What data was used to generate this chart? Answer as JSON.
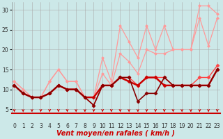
{
  "xlabel": "Vent moyen/en rafales ( km/h )",
  "bg_color": "#cce8e8",
  "grid_color": "#aaaaaa",
  "x_values": [
    0,
    1,
    2,
    3,
    4,
    5,
    6,
    7,
    8,
    9,
    10,
    11,
    12,
    13,
    14,
    15,
    16,
    17,
    18,
    19,
    20,
    21,
    22,
    23
  ],
  "series": [
    {
      "name": "top_light",
      "color": "#ff9999",
      "linewidth": 0.9,
      "markersize": 2.0,
      "marker": "D",
      "y": [
        12,
        10,
        8,
        8,
        12,
        15,
        12,
        12,
        8,
        8,
        18,
        12,
        26,
        22,
        18,
        26,
        20,
        26,
        20,
        20,
        20,
        31,
        31,
        29
      ]
    },
    {
      "name": "mid_light",
      "color": "#ff9999",
      "linewidth": 0.9,
      "markersize": 2.0,
      "marker": "D",
      "y": [
        12,
        10,
        8,
        8,
        12,
        15,
        12,
        12,
        8,
        8,
        14,
        11,
        19,
        17,
        14,
        20,
        19,
        19,
        20,
        20,
        20,
        28,
        21,
        28
      ]
    },
    {
      "name": "med_red",
      "color": "#ff4444",
      "linewidth": 1.0,
      "markersize": 2.5,
      "marker": "D",
      "y": [
        11,
        9,
        8,
        8,
        9,
        11,
        10,
        10,
        8,
        6,
        11,
        11,
        13,
        13,
        11,
        13,
        13,
        13,
        11,
        11,
        11,
        13,
        13,
        16
      ]
    },
    {
      "name": "dark_red_flat",
      "color": "#cc0000",
      "linewidth": 1.8,
      "markersize": 2.5,
      "marker": "D",
      "y": [
        11,
        9,
        8,
        8,
        9,
        11,
        10,
        10,
        8,
        8,
        11,
        11,
        13,
        12,
        11,
        13,
        13,
        11,
        11,
        11,
        11,
        11,
        11,
        15
      ]
    },
    {
      "name": "darkest_zigzag",
      "color": "#880000",
      "linewidth": 1.2,
      "markersize": 2.5,
      "marker": "D",
      "y": [
        11,
        9,
        8,
        8,
        9,
        11,
        10,
        10,
        8,
        6,
        11,
        11,
        13,
        13,
        7,
        9,
        9,
        13,
        11,
        11,
        11,
        11,
        11,
        15
      ]
    }
  ],
  "ylim": [
    4,
    32
  ],
  "xlim": [
    -0.3,
    23.3
  ],
  "yticks": [
    5,
    10,
    15,
    20,
    25,
    30
  ],
  "xticks": [
    0,
    1,
    2,
    3,
    4,
    5,
    6,
    7,
    8,
    9,
    10,
    11,
    12,
    13,
    14,
    15,
    16,
    17,
    18,
    19,
    20,
    21,
    22,
    23
  ],
  "arrow_color": "#cc0000",
  "axis_fontsize": 7,
  "tick_fontsize": 5.5
}
